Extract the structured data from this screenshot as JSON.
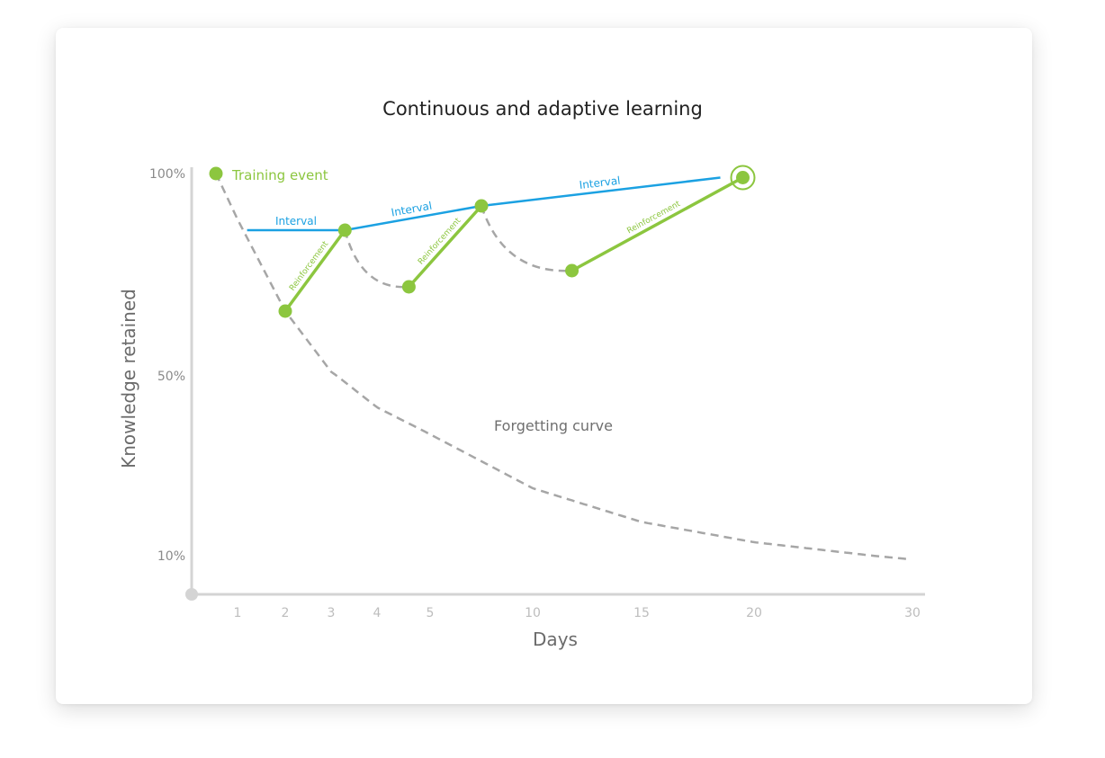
{
  "colors": {
    "green": "#8cc63f",
    "blue": "#1ba1e2",
    "grey": "#a6a6a6",
    "axis": "#d4d4d4"
  },
  "chart_data": {
    "type": "line",
    "title": "Continuous and adaptive learning",
    "xlabel": "Days",
    "ylabel": "Knowledge retained",
    "x_ticks": [
      "1",
      "2",
      "3",
      "4",
      "5",
      "10",
      "15",
      "20",
      "30"
    ],
    "y_ticks": [
      "100%",
      "50%",
      "10%"
    ],
    "grid": false,
    "legend": "none",
    "annotations": {
      "training_event": "Training event",
      "forgetting_curve": "Forgetting curve",
      "intervals": [
        "Interval",
        "Interval",
        "Interval"
      ],
      "reinforcements": [
        "Reinforcement",
        "Reinforcement",
        "Reinforcement"
      ]
    },
    "series": [
      {
        "name": "Forgetting curve",
        "style": "dashed",
        "points": [
          [
            0.5,
            100
          ],
          [
            2,
            66
          ],
          [
            3,
            51
          ],
          [
            4,
            43
          ],
          [
            5,
            37
          ],
          [
            10,
            25
          ],
          [
            15,
            17.5
          ],
          [
            20,
            13
          ],
          [
            30,
            9
          ]
        ]
      },
      {
        "name": "Training event",
        "style": "marker",
        "points": [
          [
            0.5,
            100
          ]
        ]
      },
      {
        "name": "Reinforcement",
        "style": "solid",
        "segments": [
          [
            [
              2,
              66
            ],
            [
              3.3,
              86
            ]
          ],
          [
            [
              4.6,
              72
            ],
            [
              7.5,
              92
            ]
          ],
          [
            [
              11.8,
              76
            ],
            [
              19.5,
              99
            ]
          ]
        ]
      },
      {
        "name": "Decay",
        "style": "dashed",
        "segments": [
          [
            [
              3.3,
              86
            ],
            [
              4.6,
              72
            ]
          ],
          [
            [
              7.5,
              92
            ],
            [
              11.8,
              76
            ]
          ]
        ]
      },
      {
        "name": "Interval",
        "style": "solid",
        "segments": [
          [
            [
              1.2,
              86
            ],
            [
              3.3,
              86
            ]
          ],
          [
            [
              3.3,
              86
            ],
            [
              7.5,
              92
            ]
          ],
          [
            [
              7.5,
              92
            ],
            [
              18.5,
              99
            ]
          ]
        ]
      }
    ]
  }
}
